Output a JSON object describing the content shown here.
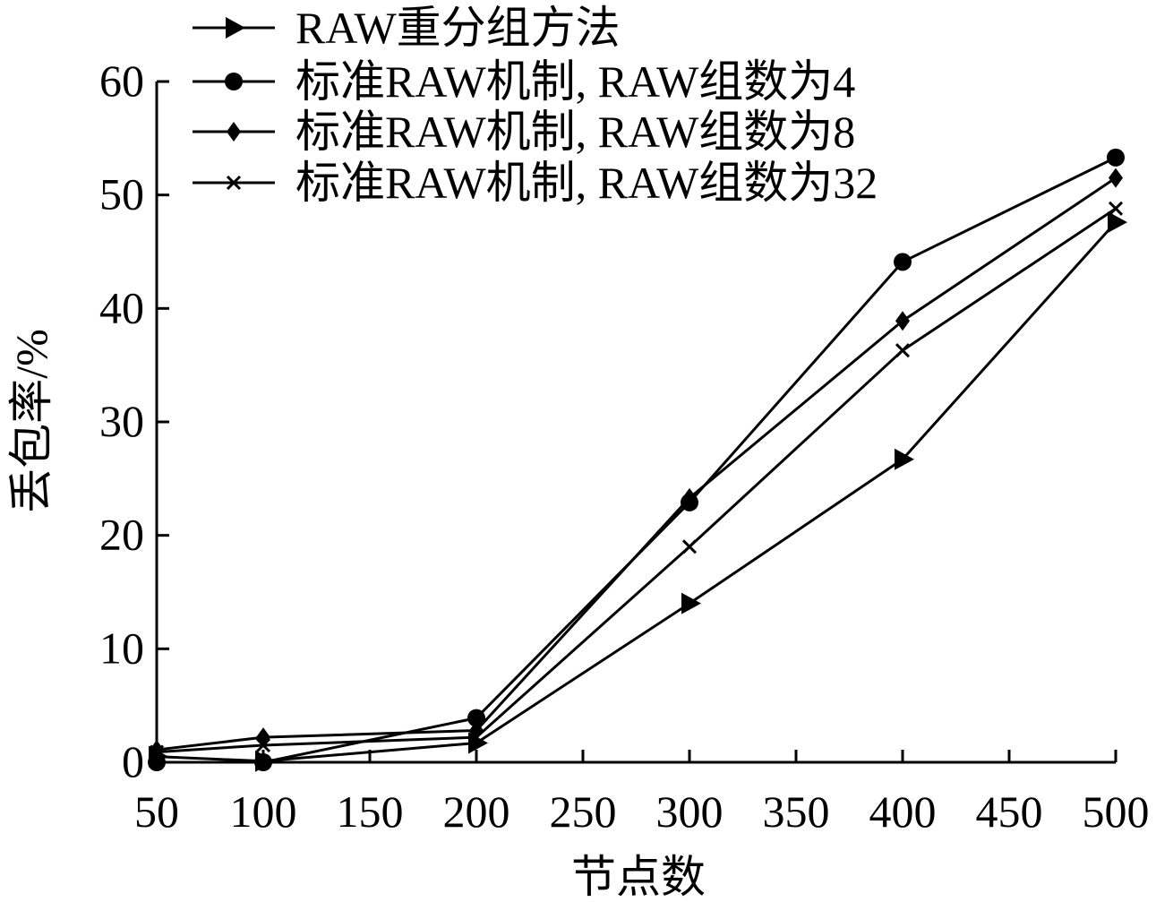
{
  "chart_data": {
    "type": "line",
    "xlabel": "节点数",
    "ylabel": "丢包率/%",
    "categories": [
      "50",
      "100",
      "150",
      "200",
      "250",
      "300",
      "350",
      "400",
      "450",
      "500"
    ],
    "ylim": [
      0,
      60
    ],
    "yticks": [
      0,
      10,
      20,
      30,
      40,
      50,
      60
    ],
    "grid": false,
    "legend_position": "top-left",
    "series": [
      {
        "name": "RAW重分组方法",
        "marker": "triangle-right",
        "points": [
          [
            50,
            0.5
          ],
          [
            100,
            0.1
          ],
          [
            200,
            1.7
          ],
          [
            300,
            14.0
          ],
          [
            400,
            26.7
          ],
          [
            500,
            47.6
          ]
        ]
      },
      {
        "name": "标准RAW机制, RAW组数为4",
        "marker": "circle",
        "points": [
          [
            50,
            0.0
          ],
          [
            100,
            0.0
          ],
          [
            200,
            3.9
          ],
          [
            300,
            22.9
          ],
          [
            400,
            44.1
          ],
          [
            500,
            53.3
          ]
        ]
      },
      {
        "name": "标准RAW机制, RAW组数为8",
        "marker": "diamond",
        "points": [
          [
            50,
            1.1
          ],
          [
            100,
            2.2
          ],
          [
            200,
            2.8
          ],
          [
            300,
            23.3
          ],
          [
            400,
            38.9
          ],
          [
            500,
            51.5
          ]
        ]
      },
      {
        "name": "标准RAW机制, RAW组数为32",
        "marker": "x",
        "points": [
          [
            50,
            0.9
          ],
          [
            100,
            1.5
          ],
          [
            200,
            2.2
          ],
          [
            300,
            19.0
          ],
          [
            400,
            36.3
          ],
          [
            500,
            48.8
          ]
        ]
      }
    ]
  }
}
